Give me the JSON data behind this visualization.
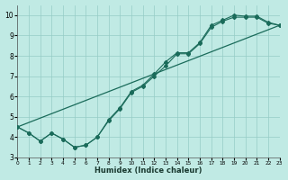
{
  "xlabel": "Humidex (Indice chaleur)",
  "bg_color": "#c0eae4",
  "grid_color": "#96ccc6",
  "line_color": "#1a6b5a",
  "xlim": [
    0,
    23
  ],
  "ylim": [
    3.0,
    10.5
  ],
  "xticks": [
    0,
    1,
    2,
    3,
    4,
    5,
    6,
    7,
    8,
    9,
    10,
    11,
    12,
    13,
    14,
    15,
    16,
    17,
    18,
    19,
    20,
    21,
    22,
    23
  ],
  "yticks": [
    3,
    4,
    5,
    6,
    7,
    8,
    9,
    10
  ],
  "line1_x": [
    0,
    1,
    2,
    3,
    4,
    5,
    6,
    7,
    8,
    9,
    10,
    11,
    12,
    13,
    14,
    15,
    16,
    17,
    18,
    19,
    20,
    21,
    22,
    23
  ],
  "line1_y": [
    4.5,
    4.2,
    3.8,
    4.2,
    3.9,
    3.5,
    3.6,
    4.0,
    4.8,
    5.4,
    6.2,
    6.5,
    7.0,
    7.5,
    8.1,
    8.1,
    8.6,
    9.4,
    9.7,
    9.9,
    9.9,
    9.9,
    9.6,
    9.5
  ],
  "line2_x": [
    0,
    1,
    2,
    3,
    4,
    5,
    6,
    7,
    8,
    9,
    10,
    11,
    12,
    13,
    14,
    15,
    16,
    17,
    18,
    19,
    20,
    21,
    22,
    23
  ],
  "line2_y": [
    4.5,
    4.2,
    3.8,
    4.2,
    3.9,
    3.5,
    3.6,
    4.0,
    4.85,
    5.45,
    6.25,
    6.55,
    7.1,
    7.7,
    8.15,
    8.15,
    8.65,
    9.5,
    9.75,
    10.0,
    9.95,
    9.95,
    9.65,
    9.5
  ],
  "line3_x": [
    0,
    23
  ],
  "line3_y": [
    4.5,
    9.5
  ]
}
